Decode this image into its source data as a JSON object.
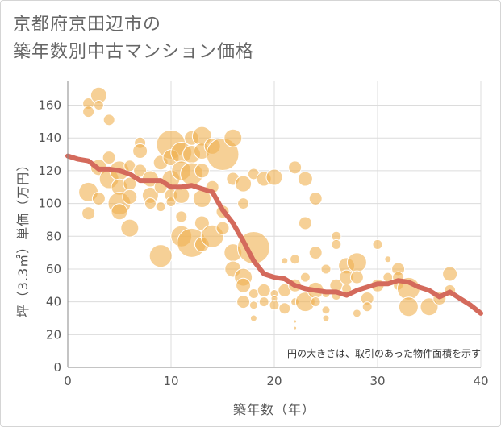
{
  "title_lines": [
    "京都府京田辺市の",
    "築年数別中古マンション価格"
  ],
  "chart_data": {
    "type": "scatter",
    "title": "京都府京田辺市の 築年数別中古マンション価格",
    "xlabel": "築年数（年）",
    "ylabel": "坪（3.3㎡）単価（万円）",
    "xlim": [
      0,
      40
    ],
    "ylim": [
      0,
      175
    ],
    "xticks": [
      0,
      10,
      20,
      30,
      40
    ],
    "yticks": [
      0,
      20,
      40,
      60,
      80,
      100,
      120,
      140,
      160
    ],
    "grid": true,
    "annotation": "円の大きさは、取引のあった物件面積を示す",
    "bubble_color": "#f0b050",
    "trend_color": "#d46a5c",
    "bubbles": [
      {
        "x": 2,
        "y": 161,
        "s": 7
      },
      {
        "x": 2,
        "y": 156,
        "s": 7
      },
      {
        "x": 3,
        "y": 166,
        "s": 10
      },
      {
        "x": 3,
        "y": 160,
        "s": 6
      },
      {
        "x": 4,
        "y": 151,
        "s": 7
      },
      {
        "x": 2,
        "y": 107,
        "s": 12
      },
      {
        "x": 2,
        "y": 94,
        "s": 8
      },
      {
        "x": 3,
        "y": 122,
        "s": 10
      },
      {
        "x": 3,
        "y": 103,
        "s": 8
      },
      {
        "x": 4,
        "y": 128,
        "s": 8
      },
      {
        "x": 4,
        "y": 115,
        "s": 12
      },
      {
        "x": 5,
        "y": 120,
        "s": 12
      },
      {
        "x": 5,
        "y": 110,
        "s": 10
      },
      {
        "x": 5,
        "y": 100,
        "s": 14
      },
      {
        "x": 5,
        "y": 95,
        "s": 10
      },
      {
        "x": 6,
        "y": 123,
        "s": 7
      },
      {
        "x": 6,
        "y": 112,
        "s": 8
      },
      {
        "x": 6,
        "y": 104,
        "s": 9
      },
      {
        "x": 6,
        "y": 85,
        "s": 11
      },
      {
        "x": 7,
        "y": 137,
        "s": 7
      },
      {
        "x": 7,
        "y": 132,
        "s": 9
      },
      {
        "x": 7,
        "y": 120,
        "s": 8
      },
      {
        "x": 8,
        "y": 115,
        "s": 10
      },
      {
        "x": 8,
        "y": 105,
        "s": 10
      },
      {
        "x": 8,
        "y": 100,
        "s": 7
      },
      {
        "x": 9,
        "y": 125,
        "s": 9
      },
      {
        "x": 9,
        "y": 110,
        "s": 8
      },
      {
        "x": 9,
        "y": 98,
        "s": 6
      },
      {
        "x": 9,
        "y": 68,
        "s": 14
      },
      {
        "x": 10,
        "y": 136,
        "s": 18
      },
      {
        "x": 10,
        "y": 128,
        "s": 10
      },
      {
        "x": 10,
        "y": 115,
        "s": 11
      },
      {
        "x": 10,
        "y": 105,
        "s": 8
      },
      {
        "x": 10,
        "y": 101,
        "s": 6
      },
      {
        "x": 11,
        "y": 131,
        "s": 13
      },
      {
        "x": 11,
        "y": 120,
        "s": 12
      },
      {
        "x": 11,
        "y": 105,
        "s": 10
      },
      {
        "x": 11,
        "y": 92,
        "s": 7
      },
      {
        "x": 11,
        "y": 80,
        "s": 13
      },
      {
        "x": 12,
        "y": 140,
        "s": 9
      },
      {
        "x": 12,
        "y": 130,
        "s": 11
      },
      {
        "x": 12,
        "y": 118,
        "s": 14
      },
      {
        "x": 12,
        "y": 76,
        "s": 18
      },
      {
        "x": 13,
        "y": 141,
        "s": 12
      },
      {
        "x": 13,
        "y": 132,
        "s": 10
      },
      {
        "x": 13,
        "y": 120,
        "s": 9
      },
      {
        "x": 13,
        "y": 103,
        "s": 11
      },
      {
        "x": 13,
        "y": 88,
        "s": 9
      },
      {
        "x": 13,
        "y": 75,
        "s": 9
      },
      {
        "x": 14,
        "y": 135,
        "s": 10
      },
      {
        "x": 14,
        "y": 110,
        "s": 8
      },
      {
        "x": 14,
        "y": 80,
        "s": 14
      },
      {
        "x": 15,
        "y": 130,
        "s": 20
      },
      {
        "x": 15,
        "y": 95,
        "s": 8
      },
      {
        "x": 15,
        "y": 85,
        "s": 8
      },
      {
        "x": 16,
        "y": 140,
        "s": 11
      },
      {
        "x": 16,
        "y": 115,
        "s": 8
      },
      {
        "x": 16,
        "y": 70,
        "s": 11
      },
      {
        "x": 16,
        "y": 60,
        "s": 10
      },
      {
        "x": 17,
        "y": 112,
        "s": 10
      },
      {
        "x": 17,
        "y": 100,
        "s": 7
      },
      {
        "x": 17,
        "y": 55,
        "s": 11
      },
      {
        "x": 17,
        "y": 50,
        "s": 9
      },
      {
        "x": 17,
        "y": 40,
        "s": 8
      },
      {
        "x": 18,
        "y": 73,
        "s": 20
      },
      {
        "x": 18,
        "y": 118,
        "s": 7
      },
      {
        "x": 18,
        "y": 45,
        "s": 6
      },
      {
        "x": 18,
        "y": 38,
        "s": 5
      },
      {
        "x": 18,
        "y": 30,
        "s": 4
      },
      {
        "x": 19,
        "y": 115,
        "s": 9
      },
      {
        "x": 19,
        "y": 47,
        "s": 8
      },
      {
        "x": 19,
        "y": 40,
        "s": 6
      },
      {
        "x": 20,
        "y": 116,
        "s": 10
      },
      {
        "x": 20,
        "y": 45,
        "s": 5
      },
      {
        "x": 20,
        "y": 42,
        "s": 4
      },
      {
        "x": 20,
        "y": 38,
        "s": 6
      },
      {
        "x": 21,
        "y": 65,
        "s": 4
      },
      {
        "x": 21,
        "y": 47,
        "s": 8
      },
      {
        "x": 21,
        "y": 36,
        "s": 7
      },
      {
        "x": 22,
        "y": 122,
        "s": 8
      },
      {
        "x": 22,
        "y": 66,
        "s": 6
      },
      {
        "x": 22,
        "y": 50,
        "s": 8
      },
      {
        "x": 22,
        "y": 40,
        "s": 5
      },
      {
        "x": 22,
        "y": 28,
        "s": 2
      },
      {
        "x": 22,
        "y": 24,
        "s": 2
      },
      {
        "x": 23,
        "y": 115,
        "s": 9
      },
      {
        "x": 23,
        "y": 88,
        "s": 8
      },
      {
        "x": 23,
        "y": 40,
        "s": 12
      },
      {
        "x": 23,
        "y": 55,
        "s": 6
      },
      {
        "x": 24,
        "y": 103,
        "s": 8
      },
      {
        "x": 24,
        "y": 70,
        "s": 8
      },
      {
        "x": 24,
        "y": 47,
        "s": 10
      },
      {
        "x": 24,
        "y": 40,
        "s": 6
      },
      {
        "x": 25,
        "y": 60,
        "s": 6
      },
      {
        "x": 25,
        "y": 45,
        "s": 5
      },
      {
        "x": 25,
        "y": 35,
        "s": 5
      },
      {
        "x": 25,
        "y": 30,
        "s": 4
      },
      {
        "x": 26,
        "y": 80,
        "s": 6
      },
      {
        "x": 26,
        "y": 75,
        "s": 6
      },
      {
        "x": 26,
        "y": 50,
        "s": 8
      },
      {
        "x": 26,
        "y": 44,
        "s": 6
      },
      {
        "x": 27,
        "y": 62,
        "s": 10
      },
      {
        "x": 27,
        "y": 55,
        "s": 9
      },
      {
        "x": 27,
        "y": 48,
        "s": 6
      },
      {
        "x": 28,
        "y": 64,
        "s": 12
      },
      {
        "x": 28,
        "y": 55,
        "s": 8
      },
      {
        "x": 28,
        "y": 33,
        "s": 5
      },
      {
        "x": 29,
        "y": 42,
        "s": 8
      },
      {
        "x": 29,
        "y": 37,
        "s": 6
      },
      {
        "x": 30,
        "y": 75,
        "s": 6
      },
      {
        "x": 30,
        "y": 50,
        "s": 8
      },
      {
        "x": 31,
        "y": 66,
        "s": 4
      },
      {
        "x": 31,
        "y": 55,
        "s": 6
      },
      {
        "x": 32,
        "y": 60,
        "s": 8
      },
      {
        "x": 32,
        "y": 55,
        "s": 7
      },
      {
        "x": 32,
        "y": 50,
        "s": 6
      },
      {
        "x": 33,
        "y": 48,
        "s": 14
      },
      {
        "x": 33,
        "y": 37,
        "s": 12
      },
      {
        "x": 35,
        "y": 37,
        "s": 11
      },
      {
        "x": 36,
        "y": 42,
        "s": 8
      },
      {
        "x": 37,
        "y": 57,
        "s": 9
      },
      {
        "x": 37,
        "y": 47,
        "s": 7
      }
    ],
    "trend_line": {
      "x": [
        0,
        1,
        2,
        3,
        4,
        5,
        6,
        7,
        8,
        9,
        10,
        11,
        12,
        13,
        14,
        15,
        16,
        17,
        18,
        19,
        20,
        21,
        22,
        23,
        24,
        25,
        26,
        27,
        28,
        29,
        30,
        31,
        32,
        33,
        34,
        35,
        36,
        37,
        38,
        39,
        40
      ],
      "y": [
        129,
        127,
        126,
        121,
        121,
        120,
        118,
        114,
        114,
        114,
        110,
        110,
        111,
        109,
        107,
        96,
        88,
        77,
        65,
        57,
        55,
        54,
        50,
        48,
        47,
        46,
        46,
        44,
        47,
        49,
        51,
        51,
        53,
        52,
        49,
        47,
        43,
        46,
        42,
        38,
        33
      ]
    }
  }
}
